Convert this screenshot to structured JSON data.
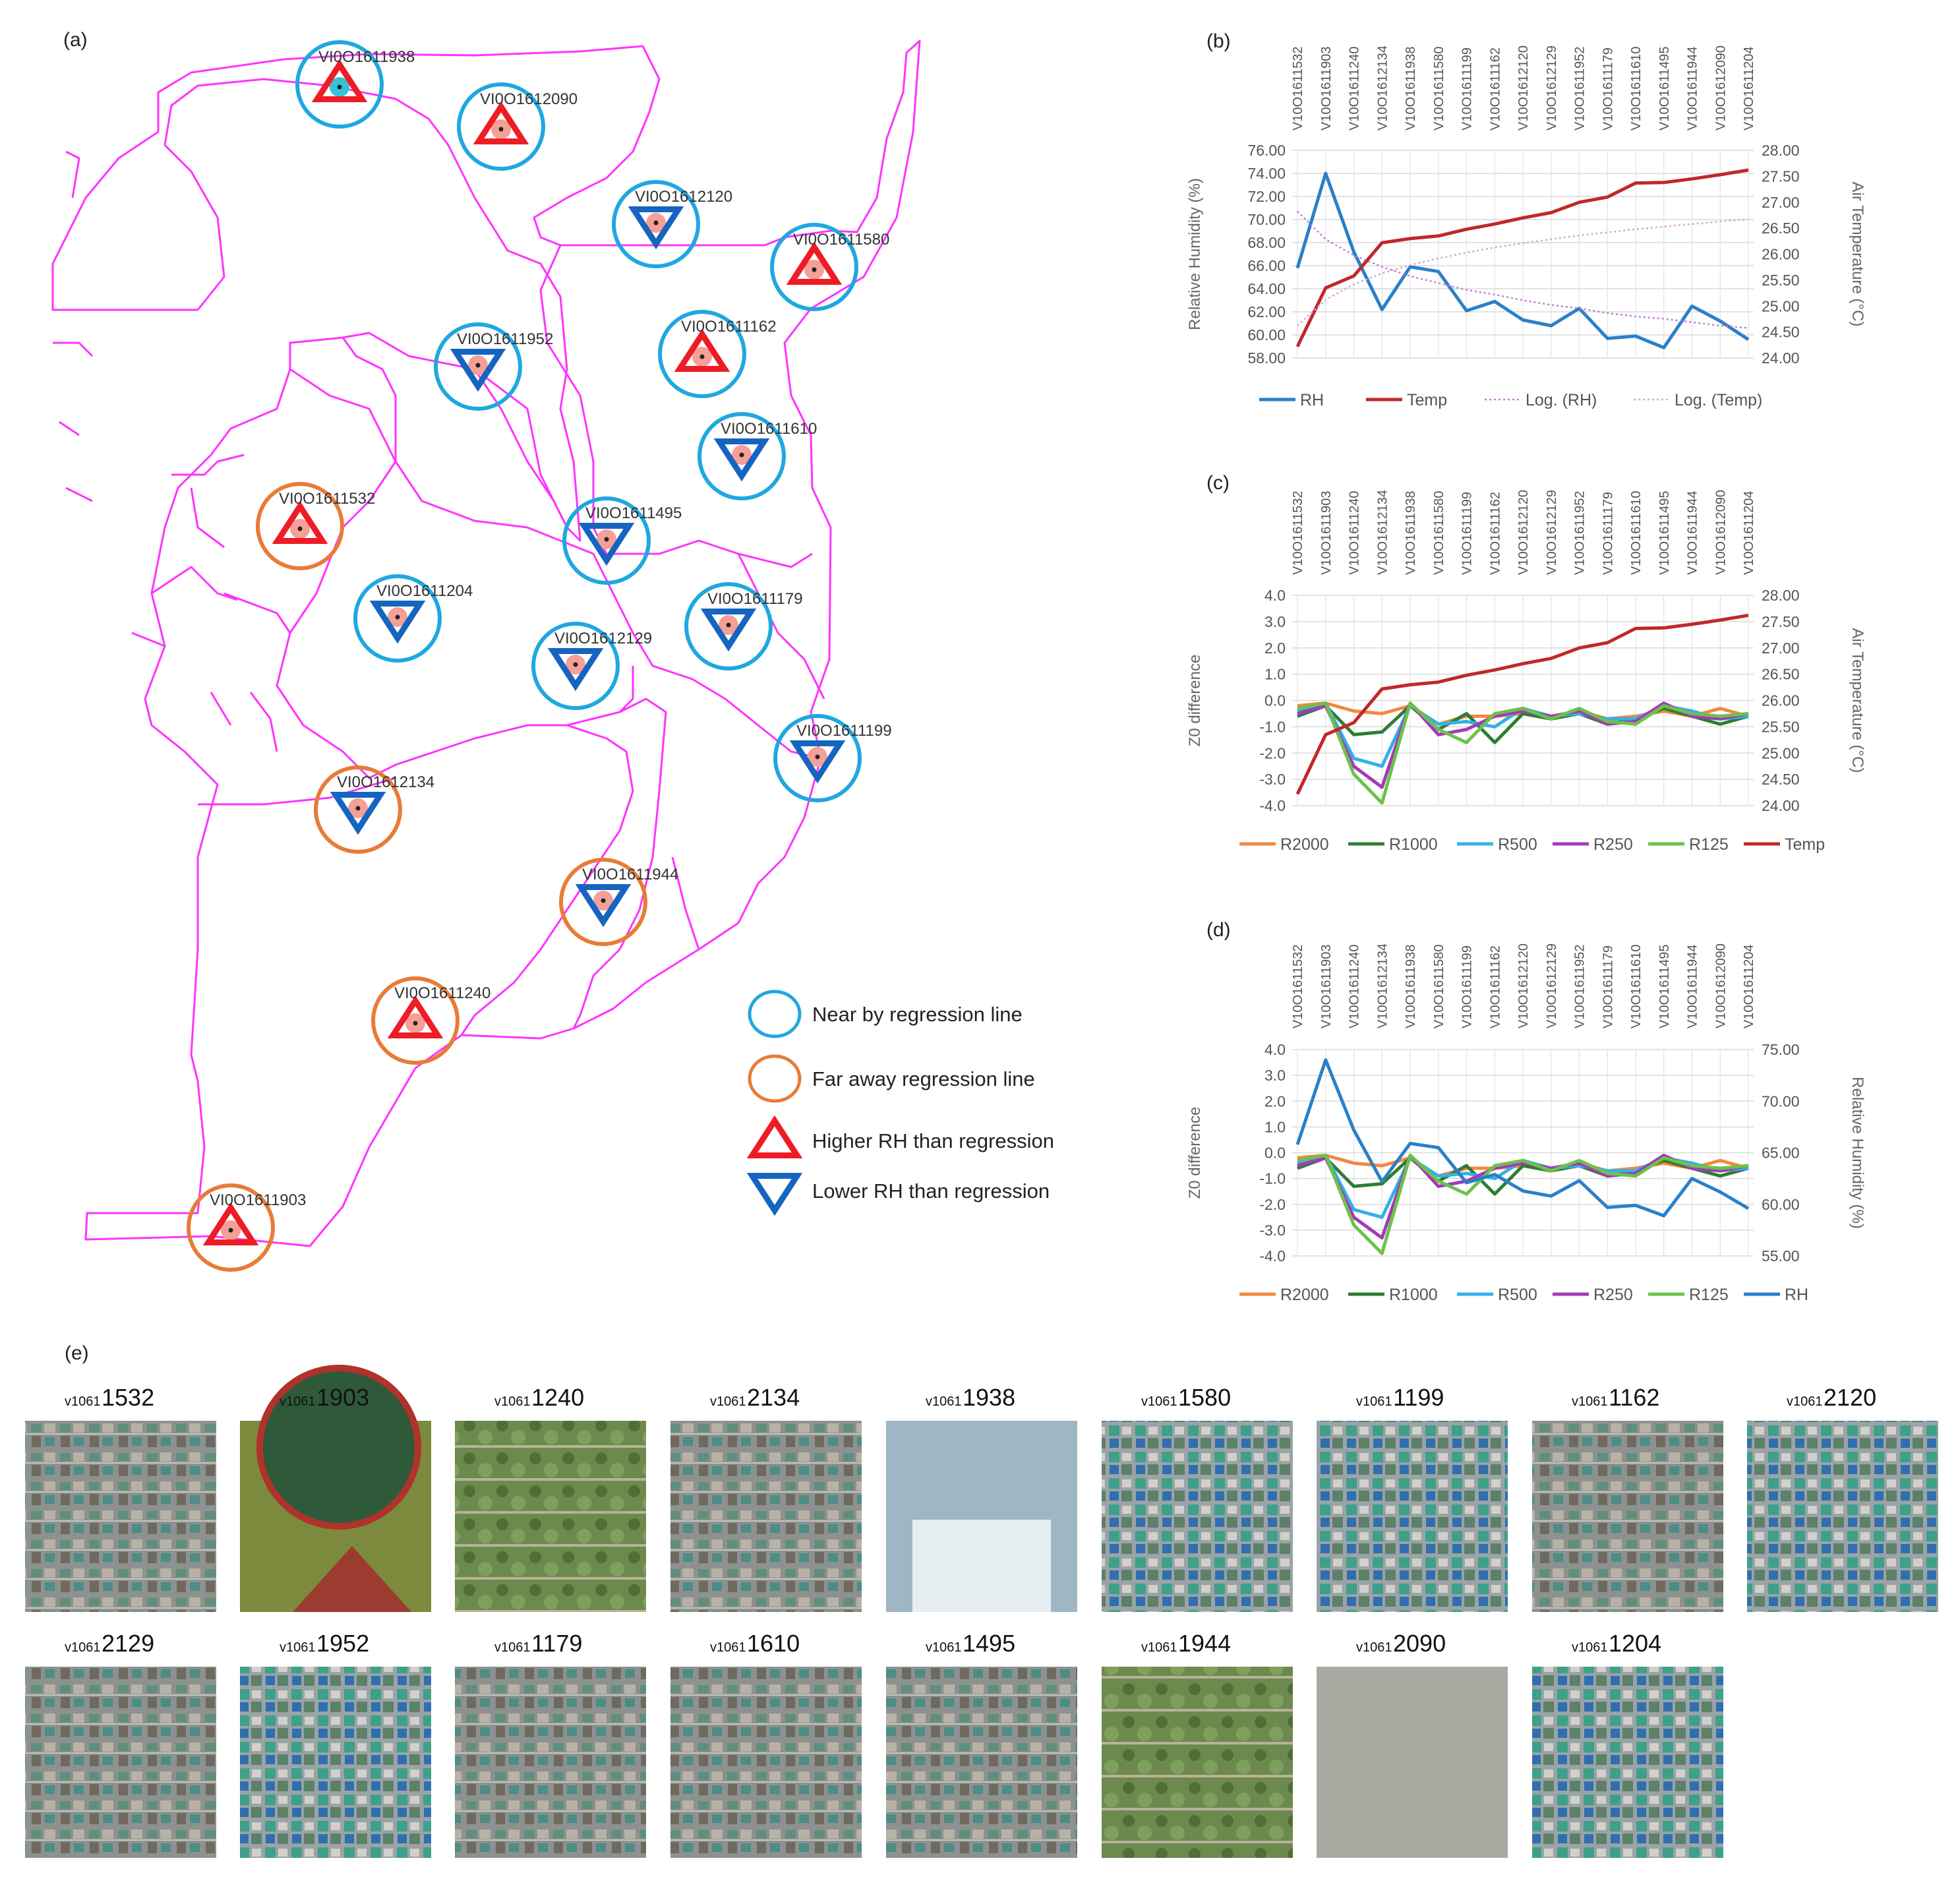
{
  "panel_labels": {
    "a": "(a)",
    "b": "(b)",
    "c": "(c)",
    "d": "(d)",
    "e": "(e)"
  },
  "colors": {
    "boundary": "#ff33ff",
    "near": "#1fa8e0",
    "far": "#e87b37",
    "higher": "#ee1c24",
    "lower": "#1565c0",
    "rh": "#2a80c8",
    "temp": "#c0282a",
    "r2000": "#f2883f",
    "r1000": "#2e7d32",
    "r500": "#33b0e8",
    "r250": "#a23ab8",
    "r125": "#6cc24a"
  },
  "map": {
    "stations": [
      {
        "label": "VI0O1611938",
        "ring": "near",
        "tri": "higher",
        "dot": "cyan"
      },
      {
        "label": "VI0O1612090",
        "ring": "near",
        "tri": "higher"
      },
      {
        "label": "VI0O1612120",
        "ring": "near",
        "tri": "lower"
      },
      {
        "label": "VI0O1611580",
        "ring": "near",
        "tri": "higher"
      },
      {
        "label": "VI0O1611952",
        "ring": "near",
        "tri": "lower"
      },
      {
        "label": "VI0O1611162",
        "ring": "near",
        "tri": "higher"
      },
      {
        "label": "VI0O1611610",
        "ring": "near",
        "tri": "lower"
      },
      {
        "label": "VI0O1611532",
        "ring": "far",
        "tri": "higher"
      },
      {
        "label": "VI0O1611495",
        "ring": "near",
        "tri": "lower"
      },
      {
        "label": "VI0O1611204",
        "ring": "near",
        "tri": "lower"
      },
      {
        "label": "VI0O1611179",
        "ring": "near",
        "tri": "lower"
      },
      {
        "label": "VI0O1612129",
        "ring": "near",
        "tri": "lower"
      },
      {
        "label": "VI0O1611199",
        "ring": "near",
        "tri": "lower"
      },
      {
        "label": "VI0O1612134",
        "ring": "far",
        "tri": "lower"
      },
      {
        "label": "VI0O1611944",
        "ring": "far",
        "tri": "lower"
      },
      {
        "label": "VI0O1611240",
        "ring": "far",
        "tri": "higher"
      },
      {
        "label": "VI0O1611903",
        "ring": "far",
        "tri": "higher"
      }
    ],
    "legend": [
      {
        "symbol": "near",
        "text": "Near by regression line"
      },
      {
        "symbol": "far",
        "text": "Far away regression line"
      },
      {
        "symbol": "higher",
        "text": "Higher RH than regression"
      },
      {
        "symbol": "lower",
        "text": "Lower RH than regression"
      }
    ]
  },
  "chart_data": [
    {
      "id": "b",
      "type": "line",
      "categories": [
        "V10O1611532",
        "V10O1611903",
        "V10O1611240",
        "V10O1612134",
        "V10O1611938",
        "V10O1611580",
        "V10O1611199",
        "V10O1611162",
        "V10O1612120",
        "V10O1612129",
        "V10O1611952",
        "V10O1611179",
        "V10O1611610",
        "V10O1611495",
        "V10O1611944",
        "V10O1612090",
        "V10O1611204"
      ],
      "ylabel": "Relative Humidity (%)",
      "y2label": "Air Temperature (°C)",
      "ylim": [
        58,
        76
      ],
      "yticks": [
        "58.00",
        "60.00",
        "62.00",
        "64.00",
        "66.00",
        "68.00",
        "70.00",
        "72.00",
        "74.00",
        "76.00"
      ],
      "y2lim": [
        24,
        28
      ],
      "y2ticks": [
        "24.00",
        "24.50",
        "25.00",
        "25.50",
        "26.00",
        "26.50",
        "27.00",
        "27.50",
        "28.00"
      ],
      "series": [
        {
          "name": "RH",
          "axis": "left",
          "style": "solid",
          "color": "#2a80c8",
          "values": [
            65.8,
            74.0,
            67.2,
            62.2,
            65.9,
            65.5,
            62.1,
            62.9,
            61.3,
            60.8,
            62.3,
            59.7,
            59.9,
            58.9,
            62.5,
            61.2,
            59.6
          ]
        },
        {
          "name": "Temp",
          "axis": "right",
          "style": "solid",
          "color": "#c0282a",
          "values": [
            24.22,
            25.35,
            25.58,
            26.22,
            26.3,
            26.35,
            26.48,
            26.58,
            26.7,
            26.8,
            27.0,
            27.1,
            27.37,
            27.38,
            27.45,
            27.53,
            27.62
          ]
        },
        {
          "name": "Log. (RH)",
          "axis": "left",
          "style": "dotted",
          "color": "#c27ad2",
          "values": [
            70.7,
            68.3,
            66.9,
            65.9,
            65.1,
            64.5,
            63.9,
            63.5,
            63.0,
            62.6,
            62.3,
            61.9,
            61.6,
            61.4,
            61.1,
            60.8,
            60.6
          ]
        },
        {
          "name": "Log. (Temp)",
          "axis": "right",
          "style": "dotted",
          "color": "#d9a3de",
          "values": [
            24.62,
            25.12,
            25.42,
            25.63,
            25.79,
            25.92,
            26.03,
            26.13,
            26.21,
            26.29,
            26.36,
            26.42,
            26.48,
            26.53,
            26.58,
            26.63,
            26.67
          ]
        }
      ]
    },
    {
      "id": "c",
      "type": "line",
      "categories": [
        "V10O1611532",
        "V10O1611903",
        "V10O1611240",
        "V10O1612134",
        "V10O1611938",
        "V10O1611580",
        "V10O1611199",
        "V10O1611162",
        "V10O1612120",
        "V10O1612129",
        "V10O1611952",
        "V10O1611179",
        "V10O1611610",
        "V10O1611495",
        "V10O1611944",
        "V10O1612090",
        "V10O1611204"
      ],
      "ylabel": "Z0 difference",
      "y2label": "Air Temperature (°C)",
      "ylim": [
        -4,
        4
      ],
      "yticks": [
        "-4.0",
        "-3.0",
        "-2.0",
        "-1.0",
        "0.0",
        "1.0",
        "2.0",
        "3.0",
        "4.0"
      ],
      "y2lim": [
        24,
        28
      ],
      "y2ticks": [
        "24.00",
        "24.50",
        "25.00",
        "25.50",
        "26.00",
        "26.50",
        "27.00",
        "27.50",
        "28.00"
      ],
      "series": [
        {
          "name": "R2000",
          "axis": "left",
          "color": "#f2883f",
          "values": [
            -0.2,
            -0.1,
            -0.4,
            -0.5,
            -0.2,
            -0.9,
            -0.6,
            -0.6,
            -0.5,
            -0.7,
            -0.4,
            -0.7,
            -0.6,
            -0.4,
            -0.6,
            -0.3,
            -0.6
          ]
        },
        {
          "name": "R1000",
          "axis": "left",
          "color": "#2e7d32",
          "values": [
            -0.6,
            -0.2,
            -1.3,
            -1.2,
            -0.2,
            -1.1,
            -0.5,
            -1.6,
            -0.5,
            -0.7,
            -0.5,
            -0.9,
            -0.7,
            -0.3,
            -0.6,
            -0.9,
            -0.6
          ]
        },
        {
          "name": "R500",
          "axis": "left",
          "color": "#33b0e8",
          "values": [
            -0.4,
            -0.1,
            -2.2,
            -2.5,
            -0.2,
            -0.9,
            -0.8,
            -1.0,
            -0.3,
            -0.6,
            -0.5,
            -0.7,
            -0.7,
            -0.2,
            -0.4,
            -0.7,
            -0.6
          ]
        },
        {
          "name": "R250",
          "axis": "left",
          "color": "#a23ab8",
          "values": [
            -0.5,
            -0.2,
            -2.5,
            -3.3,
            -0.1,
            -1.3,
            -1.1,
            -0.6,
            -0.4,
            -0.6,
            -0.4,
            -0.9,
            -0.8,
            -0.1,
            -0.6,
            -0.7,
            -0.5
          ]
        },
        {
          "name": "R125",
          "axis": "left",
          "color": "#6cc24a",
          "values": [
            -0.3,
            -0.1,
            -2.8,
            -3.9,
            -0.1,
            -1.1,
            -1.6,
            -0.5,
            -0.3,
            -0.7,
            -0.3,
            -0.8,
            -0.9,
            -0.2,
            -0.5,
            -0.6,
            -0.5
          ]
        },
        {
          "name": "Temp",
          "axis": "right",
          "color": "#c0282a",
          "values": [
            24.22,
            25.35,
            25.58,
            26.22,
            26.3,
            26.35,
            26.48,
            26.58,
            26.7,
            26.8,
            27.0,
            27.1,
            27.37,
            27.38,
            27.45,
            27.53,
            27.62
          ]
        }
      ]
    },
    {
      "id": "d",
      "type": "line",
      "categories": [
        "V10O1611532",
        "V10O1611903",
        "V10O1611240",
        "V10O1612134",
        "V10O1611938",
        "V10O1611580",
        "V10O1611199",
        "V10O1611162",
        "V10O1612120",
        "V10O1612129",
        "V10O1611952",
        "V10O1611179",
        "V10O1611610",
        "V10O1611495",
        "V10O1611944",
        "V10O1612090",
        "V10O1611204"
      ],
      "ylabel": "Z0 difference",
      "y2label": "Relative Humidity (%)",
      "ylim": [
        -4,
        4
      ],
      "yticks": [
        "-4.0",
        "-3.0",
        "-2.0",
        "-1.0",
        "0.0",
        "1.0",
        "2.0",
        "3.0",
        "4.0"
      ],
      "y2lim": [
        55,
        75
      ],
      "y2ticks": [
        "55.00",
        "60.00",
        "65.00",
        "70.00",
        "75.00"
      ],
      "series": [
        {
          "name": "R2000",
          "axis": "left",
          "color": "#f2883f",
          "values": [
            -0.2,
            -0.1,
            -0.4,
            -0.5,
            -0.2,
            -0.9,
            -0.6,
            -0.6,
            -0.5,
            -0.7,
            -0.4,
            -0.7,
            -0.6,
            -0.4,
            -0.6,
            -0.3,
            -0.6
          ]
        },
        {
          "name": "R1000",
          "axis": "left",
          "color": "#2e7d32",
          "values": [
            -0.6,
            -0.2,
            -1.3,
            -1.2,
            -0.2,
            -1.1,
            -0.5,
            -1.6,
            -0.5,
            -0.7,
            -0.5,
            -0.9,
            -0.7,
            -0.3,
            -0.6,
            -0.9,
            -0.6
          ]
        },
        {
          "name": "R500",
          "axis": "left",
          "color": "#33b0e8",
          "values": [
            -0.4,
            -0.1,
            -2.2,
            -2.5,
            -0.2,
            -0.9,
            -0.8,
            -1.0,
            -0.3,
            -0.6,
            -0.5,
            -0.7,
            -0.7,
            -0.2,
            -0.4,
            -0.7,
            -0.6
          ]
        },
        {
          "name": "R250",
          "axis": "left",
          "color": "#a23ab8",
          "values": [
            -0.5,
            -0.2,
            -2.5,
            -3.3,
            -0.1,
            -1.3,
            -1.1,
            -0.6,
            -0.4,
            -0.6,
            -0.4,
            -0.9,
            -0.8,
            -0.1,
            -0.6,
            -0.7,
            -0.5
          ]
        },
        {
          "name": "R125",
          "axis": "left",
          "color": "#6cc24a",
          "values": [
            -0.3,
            -0.1,
            -2.8,
            -3.9,
            -0.1,
            -1.1,
            -1.6,
            -0.5,
            -0.3,
            -0.7,
            -0.3,
            -0.8,
            -0.9,
            -0.2,
            -0.5,
            -0.6,
            -0.5
          ]
        },
        {
          "name": "RH",
          "axis": "right",
          "color": "#2a80c8",
          "values": [
            65.8,
            74.0,
            67.2,
            62.2,
            65.9,
            65.5,
            62.1,
            62.9,
            61.3,
            60.8,
            62.3,
            59.7,
            59.9,
            58.9,
            62.5,
            61.2,
            59.6
          ]
        }
      ]
    }
  ],
  "images": {
    "prefix": "v1061",
    "rows": [
      [
        "1532",
        "1903",
        "1240",
        "2134",
        "1938",
        "1580",
        "1199",
        "1162",
        "2120"
      ],
      [
        "2129",
        "1952",
        "1179",
        "1610",
        "1495",
        "1944",
        "2090",
        "1204"
      ]
    ]
  }
}
